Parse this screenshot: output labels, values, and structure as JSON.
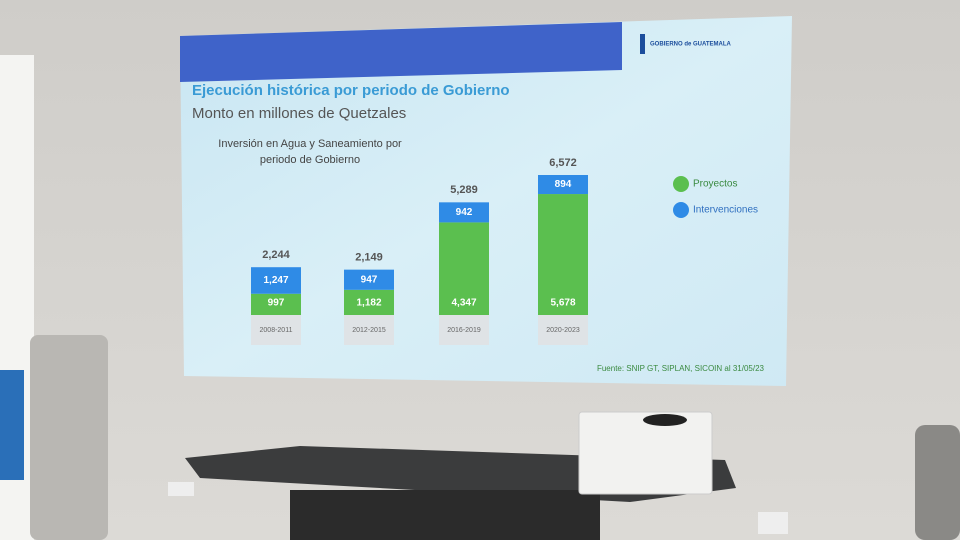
{
  "logo": "GOBIERNO de GUATEMALA",
  "chart_data": {
    "type": "stacked-bar",
    "title": "Ejecución histórica por periodo de Gobierno",
    "subtitle": "Monto en millones de Quetzales",
    "chart_title": "Inversión en Agua y Saneamiento por periodo de Gobierno",
    "source": "Fuente: SNIP GT, SIPLAN, SICOIN al 31/05/23",
    "categories": [
      "2008-2011",
      "2012-2015",
      "2016-2019",
      "2020-2023"
    ],
    "series": [
      {
        "name": "Proyectos",
        "color": "#5bbf4f",
        "values": [
          997,
          1182,
          4347,
          5678
        ],
        "value_labels": [
          "997",
          "1,182",
          "4,347",
          "5,678"
        ]
      },
      {
        "name": "Intervenciones",
        "color": "#2f8be6",
        "values": [
          1247,
          947,
          942,
          894
        ],
        "value_labels": [
          "1,247",
          "947",
          "942",
          "894"
        ]
      }
    ],
    "totals": {
      "values": [
        2244,
        2149,
        5289,
        6572
      ],
      "value_labels": [
        "2,244",
        "2,149",
        "5,289",
        "6,572"
      ]
    },
    "legend": "right"
  }
}
